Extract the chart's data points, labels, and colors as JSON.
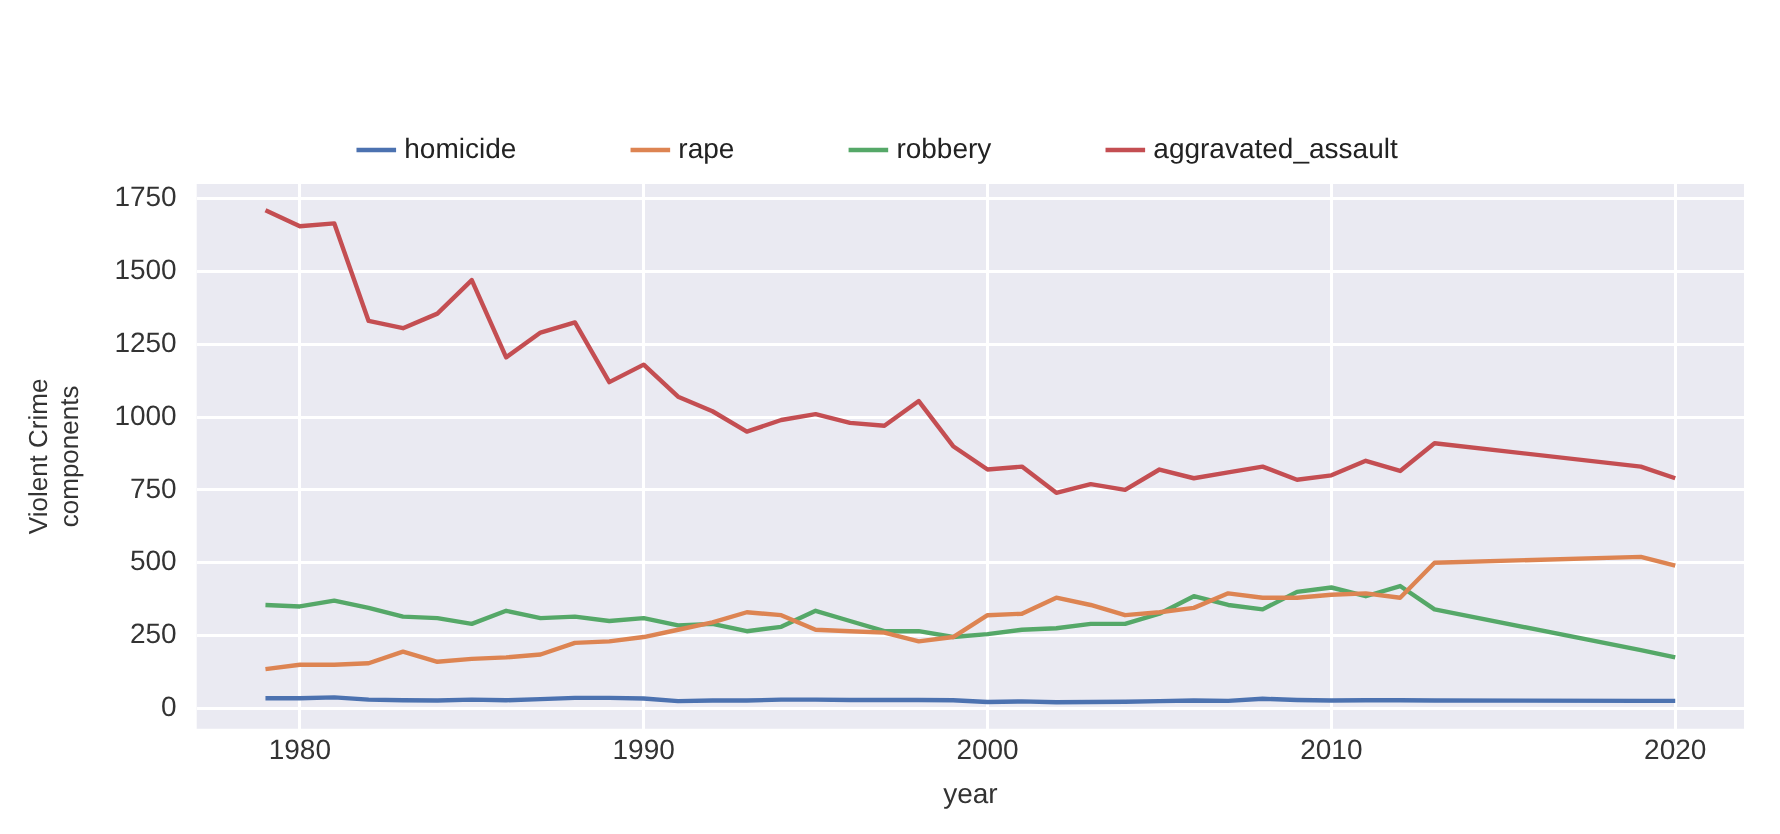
{
  "chart_data": {
    "type": "line",
    "xlabel": "year",
    "ylabel": "Violent Crime\ncomponents",
    "x": [
      1979,
      1980,
      1981,
      1982,
      1983,
      1984,
      1985,
      1986,
      1987,
      1988,
      1989,
      1990,
      1991,
      1992,
      1993,
      1994,
      1995,
      1996,
      1997,
      1998,
      1999,
      2000,
      2001,
      2002,
      2003,
      2004,
      2005,
      2006,
      2007,
      2008,
      2009,
      2010,
      2011,
      2012,
      2013,
      2019,
      2020
    ],
    "series": [
      {
        "name": "homicide",
        "color": "#4c72b0",
        "values": [
          35,
          35,
          38,
          30,
          28,
          27,
          30,
          28,
          32,
          36,
          36,
          34,
          25,
          27,
          27,
          30,
          30,
          29,
          29,
          29,
          28,
          22,
          24,
          21,
          22,
          23,
          25,
          27,
          26,
          33,
          29,
          27,
          28,
          28,
          27,
          26,
          26
        ]
      },
      {
        "name": "rape",
        "color": "#dd8452",
        "values": [
          135,
          150,
          150,
          155,
          195,
          160,
          170,
          175,
          185,
          225,
          230,
          245,
          270,
          295,
          330,
          320,
          270,
          265,
          260,
          230,
          245,
          320,
          325,
          380,
          355,
          320,
          330,
          345,
          395,
          380,
          380,
          390,
          395,
          380,
          500,
          520,
          490
        ]
      },
      {
        "name": "robbery",
        "color": "#55a868",
        "values": [
          355,
          350,
          370,
          345,
          315,
          310,
          290,
          335,
          310,
          315,
          300,
          310,
          285,
          290,
          265,
          280,
          335,
          300,
          265,
          265,
          245,
          255,
          270,
          275,
          290,
          290,
          325,
          385,
          355,
          340,
          400,
          415,
          385,
          420,
          340,
          200,
          175
        ]
      },
      {
        "name": "aggravated_assault",
        "color": "#c44e52",
        "values": [
          1710,
          1655,
          1665,
          1330,
          1305,
          1355,
          1470,
          1205,
          1290,
          1325,
          1120,
          1180,
          1070,
          1020,
          950,
          990,
          1010,
          980,
          970,
          1055,
          900,
          820,
          830,
          740,
          770,
          750,
          820,
          790,
          810,
          830,
          785,
          800,
          850,
          815,
          910,
          830,
          790
        ]
      }
    ],
    "xlim": [
      1977,
      2022
    ],
    "xticks": [
      1980,
      1990,
      2000,
      2010,
      2020
    ],
    "ylim": [
      -70,
      1800
    ],
    "yticks": [
      0,
      250,
      500,
      750,
      1000,
      1250,
      1500,
      1750
    ],
    "grid": true,
    "legend": "top",
    "marker": "none",
    "line_style": "solid"
  }
}
